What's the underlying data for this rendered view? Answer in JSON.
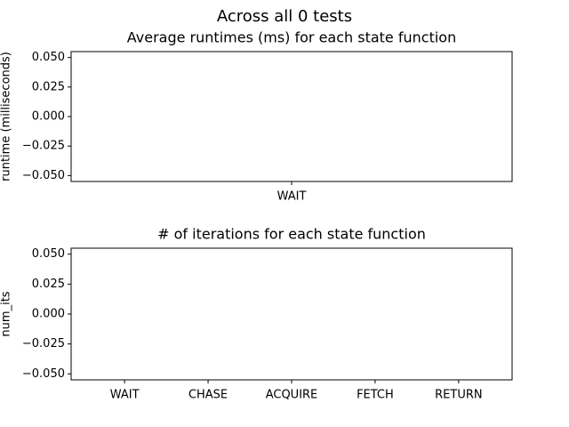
{
  "title": "Across all 0 tests",
  "chart_data": [
    {
      "type": "bar",
      "title": "Average runtimes (ms) for each state function",
      "y_label": "runtime (milliseconds)",
      "categories": [
        "WAIT"
      ],
      "values": [
        0
      ],
      "color": "#1f77b4",
      "ylim": [
        -0.055,
        0.055
      ],
      "yticks": [
        {
          "value": -0.05,
          "label": "−0.050"
        },
        {
          "value": -0.025,
          "label": "−0.025"
        },
        {
          "value": 0,
          "label": "0.000"
        },
        {
          "value": 0.025,
          "label": "0.025"
        },
        {
          "value": 0.05,
          "label": "0.050"
        }
      ]
    },
    {
      "type": "bar",
      "title": "# of iterations for each state function",
      "y_label": "num_its",
      "categories": [
        "WAIT",
        "CHASE",
        "ACQUIRE",
        "FETCH",
        "RETURN"
      ],
      "values": [
        0,
        0,
        0,
        0,
        0
      ],
      "color": "#1f77b4",
      "ylim": [
        -0.055,
        0.055
      ],
      "yticks": [
        {
          "value": -0.05,
          "label": "−0.050"
        },
        {
          "value": -0.025,
          "label": "−0.025"
        },
        {
          "value": 0,
          "label": "0.000"
        },
        {
          "value": 0.025,
          "label": "0.025"
        },
        {
          "value": 0.05,
          "label": "0.050"
        }
      ]
    }
  ]
}
